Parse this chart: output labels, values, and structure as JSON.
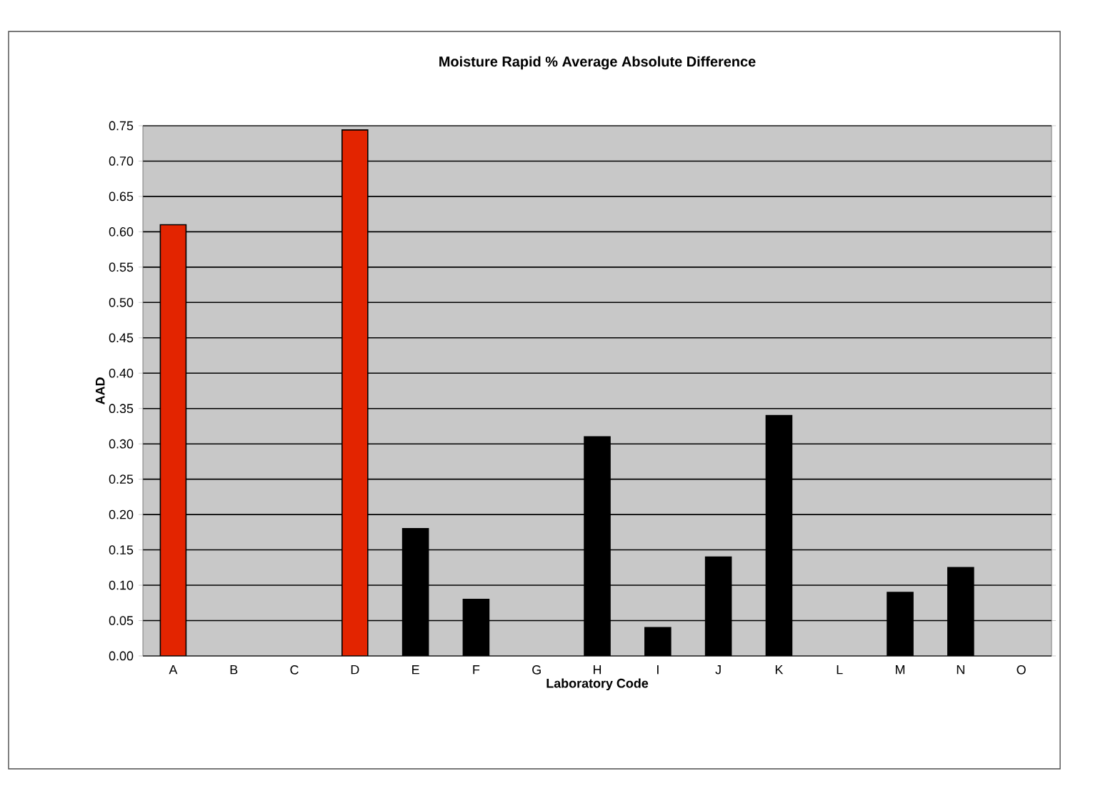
{
  "chart_data": {
    "type": "bar",
    "title": "Moisture Rapid % Average Absolute Difference",
    "xlabel": "Laboratory Code",
    "ylabel": "AAD",
    "categories": [
      "A",
      "B",
      "C",
      "D",
      "E",
      "F",
      "G",
      "H",
      "I",
      "J",
      "K",
      "L",
      "M",
      "N",
      "O"
    ],
    "values": [
      0.61,
      null,
      null,
      0.744,
      0.18,
      0.08,
      null,
      0.31,
      0.04,
      0.14,
      0.34,
      null,
      0.09,
      0.125,
      null
    ],
    "colors": [
      "#e32400",
      "#000000",
      "#000000",
      "#e32400",
      "#000000",
      "#000000",
      "#000000",
      "#000000",
      "#000000",
      "#000000",
      "#000000",
      "#000000",
      "#000000",
      "#000000",
      "#000000"
    ],
    "ylim": [
      0,
      0.75
    ],
    "yticks": [
      {
        "value": 0,
        "label": "0.00"
      },
      {
        "value": 0.05,
        "label": "0.05"
      },
      {
        "value": 0.1,
        "label": "0.10"
      },
      {
        "value": 0.15,
        "label": "0.15"
      },
      {
        "value": 0.2,
        "label": "0.20"
      },
      {
        "value": 0.25,
        "label": "0.25"
      },
      {
        "value": 0.3,
        "label": "0.30"
      },
      {
        "value": 0.35,
        "label": "0.35"
      },
      {
        "value": 0.4,
        "label": "0.40"
      },
      {
        "value": 0.45,
        "label": "0.45"
      },
      {
        "value": 0.5,
        "label": "0.50"
      },
      {
        "value": 0.55,
        "label": "0.55"
      },
      {
        "value": 0.6,
        "label": "0.60"
      },
      {
        "value": 0.65,
        "label": "0.65"
      },
      {
        "value": 0.7,
        "label": "0.70"
      },
      {
        "value": 0.75,
        "label": "0.75"
      }
    ],
    "grid": "y"
  }
}
